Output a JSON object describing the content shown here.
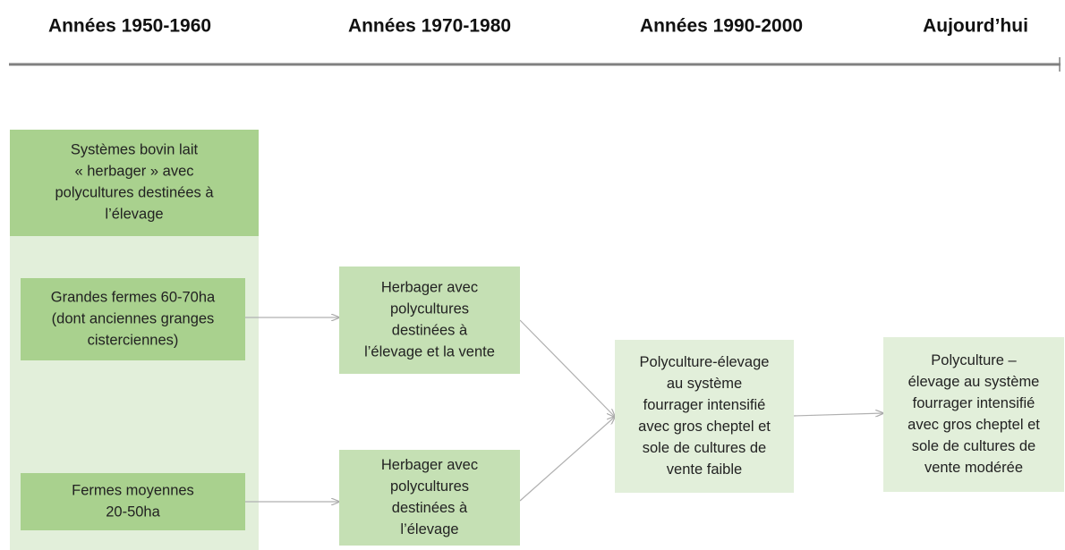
{
  "periods": [
    "Années 1950-1960",
    "Années 1970-1980",
    "Années 1990-2000",
    "Aujourd’hui"
  ],
  "panel": {
    "lines": [
      "Systèmes bovin lait",
      "« herbager » avec",
      "polycultures destinées à",
      "l’élevage"
    ]
  },
  "boxes": [
    {
      "lines": [
        "Grandes fermes 60-70ha",
        "(dont anciennes granges",
        "cisterciennes)"
      ]
    },
    {
      "lines": [
        "Fermes moyennes",
        "20-50ha"
      ]
    },
    {
      "lines": [
        "Herbager avec",
        "polycultures",
        "destinées à",
        "l’élevage et la vente"
      ]
    },
    {
      "lines": [
        "Herbager avec",
        "polycultures",
        "destinées à",
        "l’élevage"
      ]
    },
    {
      "lines": [
        "Polyculture-élevage",
        "au système",
        "fourrager intensifié",
        "avec gros cheptel et",
        "sole de cultures de",
        "vente faible"
      ]
    },
    {
      "lines": [
        "Polyculture –",
        "élevage au système",
        "fourrager intensifié",
        "avec gros cheptel et",
        "sole de cultures de",
        "vente modérée"
      ]
    }
  ]
}
